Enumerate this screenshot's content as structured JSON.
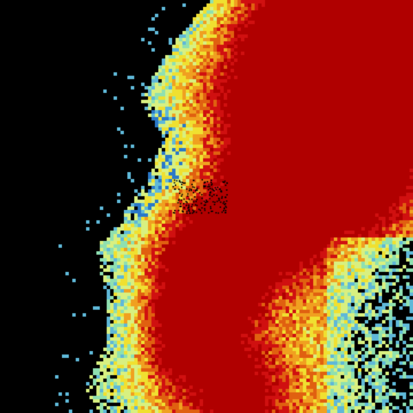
{
  "image": {
    "kind": "weather radar reflectivity",
    "background_color": "#000000",
    "palette": [
      "#5fb8d8",
      "#2a78c8",
      "#8fe0b0",
      "#d8f080",
      "#f0e030",
      "#f0a020",
      "#e06010",
      "#d01010",
      "#b00000"
    ]
  }
}
